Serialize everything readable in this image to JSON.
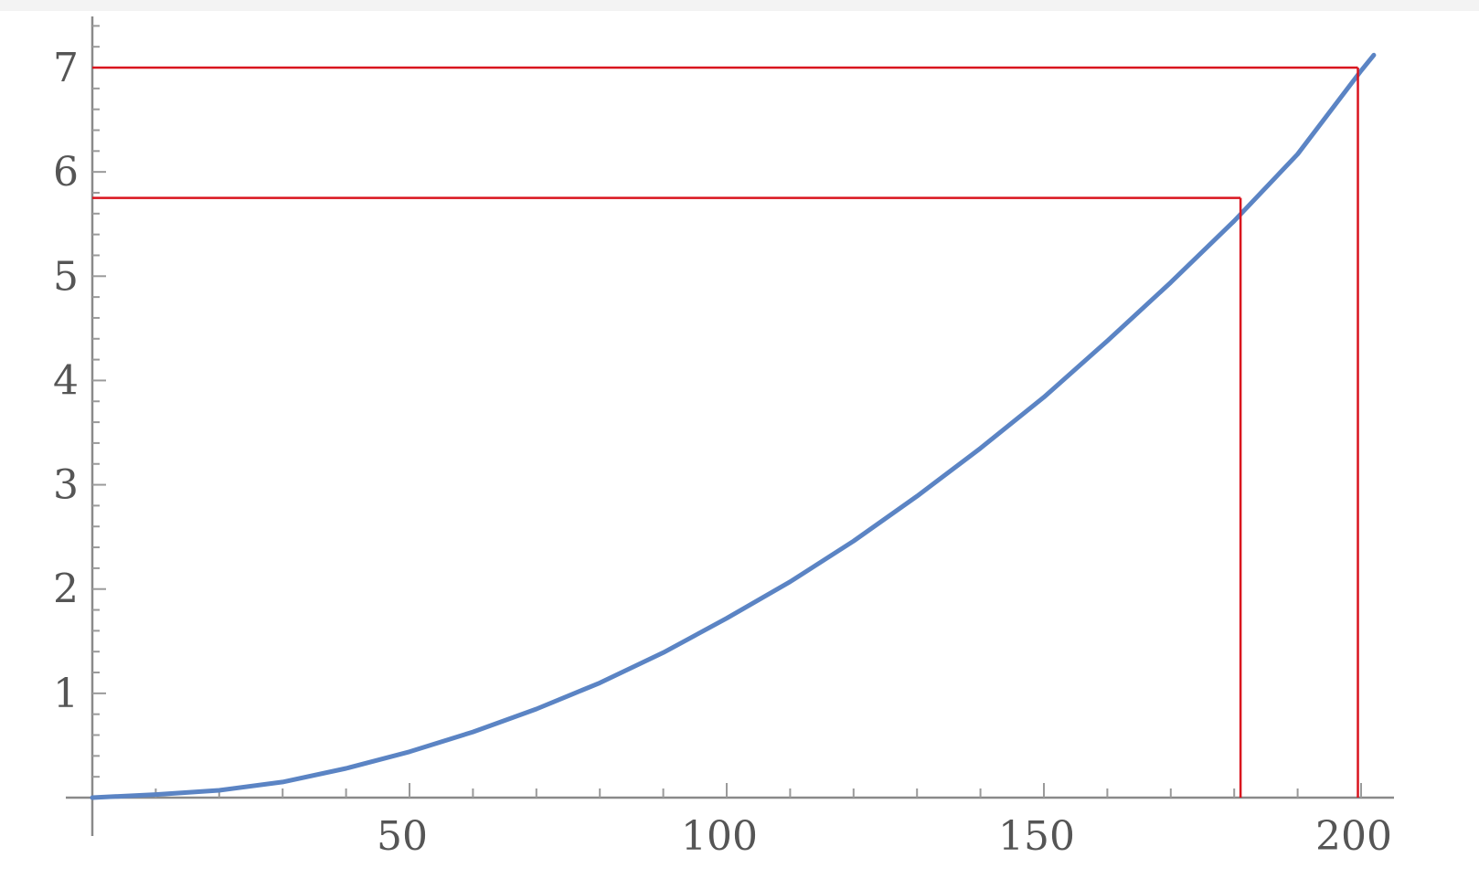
{
  "chart_data": {
    "type": "line",
    "title": "",
    "xlabel": "",
    "ylabel": "",
    "xlim": [
      0,
      204
    ],
    "ylim": [
      0,
      7.4
    ],
    "x_ticks": [
      50,
      100,
      150,
      200
    ],
    "x_tick_labels": [
      "50",
      "100",
      "150",
      "200"
    ],
    "y_ticks": [
      1,
      2,
      3,
      4,
      5,
      6,
      7
    ],
    "y_tick_labels": [
      "1",
      "2",
      "3",
      "4",
      "5",
      "6",
      "7"
    ],
    "x_minor_step": 10,
    "y_minor_step": 0.2,
    "grid": false,
    "series": [
      {
        "color": "#5b84c4",
        "x": [
          0,
          10,
          20,
          30,
          40,
          50,
          60,
          70,
          80,
          90,
          100,
          110,
          120,
          130,
          140,
          150,
          160,
          170,
          180,
          190,
          200,
          202
        ],
        "y": [
          0,
          0.03,
          0.07,
          0.15,
          0.28,
          0.44,
          0.63,
          0.85,
          1.1,
          1.39,
          1.72,
          2.07,
          2.46,
          2.89,
          3.35,
          3.84,
          4.38,
          4.94,
          5.53,
          6.17,
          6.97,
          7.12
        ]
      }
    ],
    "reference_lines": [
      {
        "color": "#d9141e",
        "x": 181,
        "y": 5.75
      },
      {
        "color": "#d9141e",
        "x": 199.5,
        "y": 7.0
      }
    ]
  }
}
